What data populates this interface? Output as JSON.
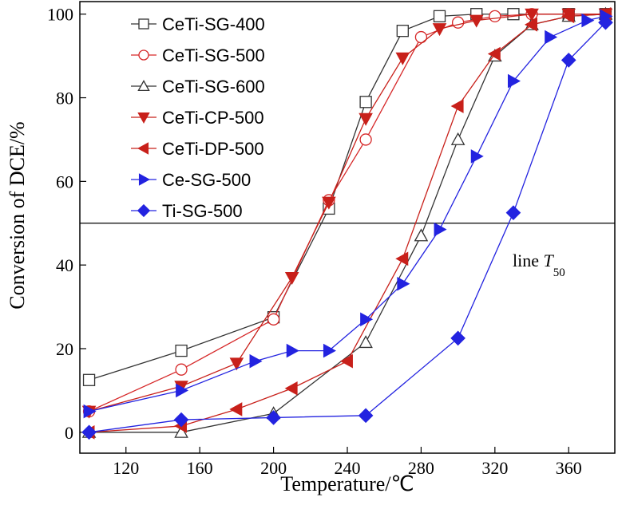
{
  "chart_data": {
    "type": "line",
    "xlabel": "Temperature/℃",
    "ylabel": "Conversion of DCE/%",
    "xlim": [
      95,
      385
    ],
    "ylim": [
      -5,
      103
    ],
    "xticks": [
      120,
      160,
      200,
      240,
      280,
      320,
      360
    ],
    "yticks": [
      0,
      20,
      40,
      60,
      80,
      100
    ],
    "legend_position": "top-left",
    "reference_line": {
      "y": 50,
      "label_main": "line ",
      "label_italic": "T",
      "label_sub": "50"
    },
    "series": [
      {
        "name": "CeTi-SG-400",
        "marker": "square",
        "filled": false,
        "color": "#333333",
        "x": [
          100,
          150,
          200,
          230,
          250,
          270,
          290,
          310,
          330,
          360,
          380
        ],
        "y": [
          12.5,
          19.5,
          27.5,
          53.5,
          79,
          96,
          99.5,
          100,
          100,
          100,
          100
        ]
      },
      {
        "name": "CeTi-SG-500",
        "marker": "circle",
        "filled": false,
        "color": "#d62728",
        "x": [
          100,
          150,
          200,
          230,
          250,
          280,
          300,
          320,
          340,
          360,
          380
        ],
        "y": [
          5,
          15,
          27,
          55.5,
          70,
          94.5,
          98,
          99.5,
          100,
          100,
          100
        ]
      },
      {
        "name": "CeTi-SG-600",
        "marker": "triangle-up",
        "filled": false,
        "color": "#333333",
        "x": [
          100,
          150,
          200,
          250,
          280,
          300,
          320,
          340,
          360,
          380
        ],
        "y": [
          0,
          0,
          4.5,
          21.5,
          47,
          70,
          90,
          97.5,
          99.5,
          100
        ]
      },
      {
        "name": "CeTi-CP-500",
        "marker": "triangle-down",
        "filled": true,
        "color": "#c8201a",
        "x": [
          100,
          150,
          180,
          210,
          230,
          250,
          270,
          290,
          310,
          340,
          360,
          380
        ],
        "y": [
          5,
          11,
          16.5,
          37,
          55,
          75,
          89.5,
          96.5,
          98.5,
          100,
          100,
          100
        ]
      },
      {
        "name": "CeTi-DP-500",
        "marker": "triangle-left",
        "filled": true,
        "color": "#c8201a",
        "x": [
          100,
          150,
          180,
          210,
          240,
          270,
          300,
          320,
          340,
          360,
          380
        ],
        "y": [
          0,
          1.5,
          5.5,
          10.5,
          17,
          41.5,
          78,
          90.5,
          97.5,
          99.5,
          100
        ]
      },
      {
        "name": "Ce-SG-500",
        "marker": "triangle-right",
        "filled": true,
        "color": "#2323e0",
        "x": [
          100,
          150,
          190,
          210,
          230,
          250,
          270,
          290,
          310,
          330,
          350,
          370,
          380
        ],
        "y": [
          5,
          10,
          17,
          19.5,
          19.5,
          27,
          35.5,
          48.5,
          66,
          84,
          94.5,
          98.5,
          99.5
        ]
      },
      {
        "name": "Ti-SG-500",
        "marker": "diamond",
        "filled": true,
        "color": "#2323e0",
        "x": [
          100,
          150,
          200,
          250,
          300,
          330,
          360,
          380
        ],
        "y": [
          0,
          3,
          3.5,
          4,
          22.5,
          52.5,
          89,
          98
        ]
      }
    ]
  }
}
